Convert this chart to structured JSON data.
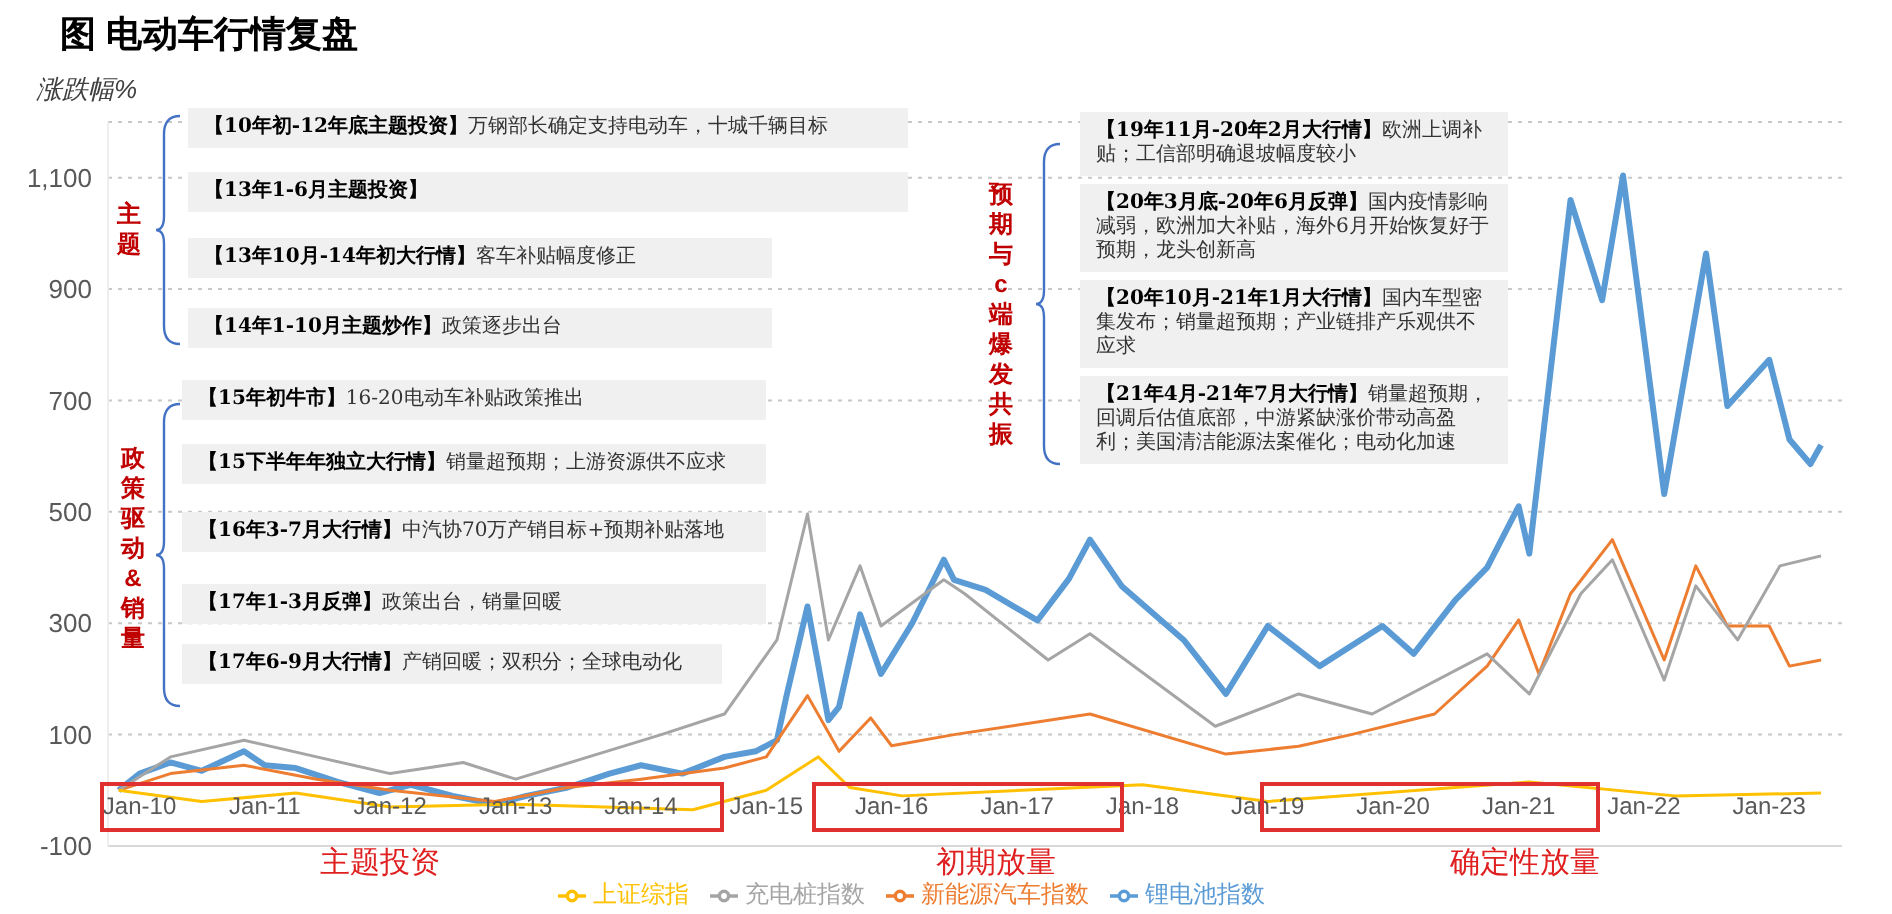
{
  "chart_data": {
    "type": "line",
    "title": "图 电动车行情复盘",
    "ylabel": "涨跌幅%",
    "xlim": [
      "2009-10-01",
      "2023-08-01"
    ],
    "xticks": [
      {
        "value": "2010-01-01",
        "label": "Jan-10"
      },
      {
        "value": "2011-01-01",
        "label": "Jan-11"
      },
      {
        "value": "2012-01-01",
        "label": "Jan-12"
      },
      {
        "value": "2013-01-01",
        "label": "Jan-13"
      },
      {
        "value": "2014-01-01",
        "label": "Jan-14"
      },
      {
        "value": "2015-01-01",
        "label": "Jan-15"
      },
      {
        "value": "2016-01-01",
        "label": "Jan-16"
      },
      {
        "value": "2017-01-01",
        "label": "Jan-17"
      },
      {
        "value": "2018-01-01",
        "label": "Jan-18"
      },
      {
        "value": "2019-01-01",
        "label": "Jan-19"
      },
      {
        "value": "2020-01-01",
        "label": "Jan-20"
      },
      {
        "value": "2021-01-01",
        "label": "Jan-21"
      },
      {
        "value": "2022-01-01",
        "label": "Jan-22"
      },
      {
        "value": "2023-01-01",
        "label": "Jan-23"
      }
    ],
    "ylim": [
      -100,
      1200
    ],
    "yticks": [
      -100,
      100,
      300,
      500,
      700,
      900,
      {
        "value": 1100,
        "label": "1,100"
      }
    ],
    "grid": "y",
    "legend": "bottom",
    "series": [
      {
        "name": "锂电池指数",
        "color": "#5b9bd5",
        "x": [
          "2009-11",
          "2010-01",
          "2010-04",
          "2010-07",
          "2010-11",
          "2011-01",
          "2011-04",
          "2011-08",
          "2011-12",
          "2012-03",
          "2012-07",
          "2012-11",
          "2013-02",
          "2013-06",
          "2013-10",
          "2014-01",
          "2014-05",
          "2014-09",
          "2014-12",
          "2015-02",
          "2015-03",
          "2015-05",
          "2015-07",
          "2015-08",
          "2015-10",
          "2015-12",
          "2016-03",
          "2016-06",
          "2016-07",
          "2016-10",
          "2017-03",
          "2017-06",
          "2017-08",
          "2017-11",
          "2018-05",
          "2018-09",
          "2019-01",
          "2019-06",
          "2019-12",
          "2020-03",
          "2020-07",
          "2020-10",
          "2021-01",
          "2021-02",
          "2021-06",
          "2021-09",
          "2021-11",
          "2022-03",
          "2022-07",
          "2022-09",
          "2023-01",
          "2023-03",
          "2023-05",
          "2023-06"
        ],
        "values": [
          0,
          30,
          50,
          35,
          70,
          45,
          40,
          15,
          -5,
          10,
          -10,
          -25,
          -10,
          5,
          30,
          45,
          30,
          60,
          70,
          90,
          170,
          330,
          126,
          150,
          316,
          209,
          300,
          414,
          378,
          360,
          305,
          380,
          450,
          367,
          270,
          173,
          295,
          223,
          295,
          245,
          342,
          400,
          510,
          425,
          1060,
          880,
          1104,
          532,
          964,
          690,
          773,
          630,
          586,
          620
        ]
      },
      {
        "name": "新能源汽车指数",
        "color": "#ed7d31",
        "x": [
          "2009-11",
          "2010-04",
          "2010-11",
          "2011-06",
          "2012-01",
          "2012-11",
          "2013-06",
          "2014-01",
          "2014-09",
          "2015-01",
          "2015-05",
          "2015-08",
          "2015-11",
          "2016-01",
          "2016-07",
          "2017-08",
          "2018-09",
          "2019-04",
          "2019-09",
          "2020-05",
          "2020-10",
          "2021-01",
          "2021-03",
          "2021-06",
          "2021-10",
          "2022-03",
          "2022-06",
          "2022-09",
          "2023-01",
          "2023-03",
          "2023-06"
        ],
        "values": [
          0,
          30,
          45,
          20,
          0,
          -20,
          5,
          20,
          40,
          60,
          170,
          70,
          130,
          80,
          100,
          137,
          65,
          79,
          100,
          137,
          223,
          306,
          209,
          353,
          450,
          234,
          403,
          295,
          295,
          223,
          234
        ]
      },
      {
        "name": "充电桩指数",
        "color": "#a5a5a5",
        "x": [
          "2009-11",
          "2010-04",
          "2010-11",
          "2011-06",
          "2012-01",
          "2012-08",
          "2013-01",
          "2013-08",
          "2014-03",
          "2014-09",
          "2015-02",
          "2015-05",
          "2015-07",
          "2015-10",
          "2015-12",
          "2016-06",
          "2016-08",
          "2017-04",
          "2017-08",
          "2018-08",
          "2019-04",
          "2019-11",
          "2020-10",
          "2021-02",
          "2021-07",
          "2021-10",
          "2022-03",
          "2022-06",
          "2022-10",
          "2023-02",
          "2023-06"
        ],
        "values": [
          0,
          60,
          90,
          60,
          30,
          50,
          20,
          60,
          100,
          137,
          270,
          496,
          270,
          403,
          295,
          378,
          353,
          234,
          281,
          115,
          173,
          137,
          245,
          173,
          353,
          414,
          198,
          367,
          270,
          403,
          421
        ]
      },
      {
        "name": "上证综指",
        "color": "#ffc000",
        "x": [
          "2009-11",
          "2010-07",
          "2011-04",
          "2012-01",
          "2013-01",
          "2014-06",
          "2015-01",
          "2015-06",
          "2015-09",
          "2016-02",
          "2018-01",
          "2019-01",
          "2021-02",
          "2022-04",
          "2023-06"
        ],
        "values": [
          0,
          -20,
          -5,
          -30,
          -25,
          -35,
          0,
          60,
          5,
          -10,
          10,
          -20,
          15,
          -10,
          -5
        ]
      }
    ],
    "annotations": [
      "【10年初-12年底主题投资】万钢部长确定支持电动车，十城千辆目标",
      "【13年1-6月主题投资】",
      "【13年10月-14年初大行情】客车补贴幅度修正",
      "【14年1-10月主题炒作】政策逐步出台",
      "【15年初牛市】16-20电动车补贴政策推出",
      "【15下半年年独立大行情】销量超预期；上游资源供不应求",
      "【16年3-7月大行情】中汽协70万产销目标+预期补贴落地",
      "【17年1-3月反弹】政策出台，销量回暖",
      "【17年6-9月大行情】产销回暖；双积分；全球电动化",
      "【19年11月-20年2月大行情】欧洲上调补贴；工信部明确退坡幅度较小",
      "【20年3月底-20年6月反弹】国内疫情影响减弱，欧洲加大补贴，海外6月开始恢复好于预期，龙头创新高",
      "【20年10月-21年1月大行情】国内车型密集发布；销量超预期；产业链排产乐观供不应求",
      "【21年4月-21年7月大行情】销量超预期，回调后估值底部，中游紧缺涨价带动高盈利；美国清洁能源法案催化；电动化加速",
      "主题",
      "政策驱动&销量",
      "预期与c端爆发共振",
      "主题投资",
      "初期放量",
      "确定性放量"
    ]
  }
}
